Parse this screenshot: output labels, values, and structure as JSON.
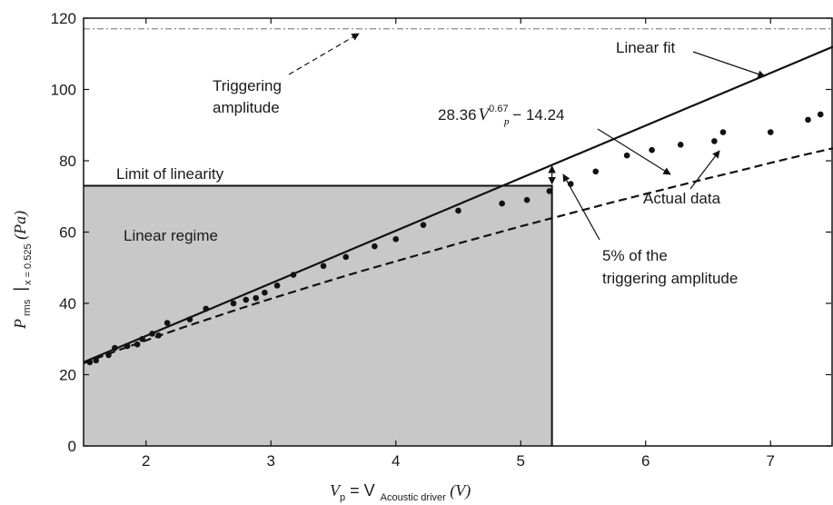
{
  "chart_data": {
    "type": "scatter",
    "xlim": [
      1.5,
      7.5
    ],
    "ylim": [
      0,
      120
    ],
    "x_ticks": [
      2,
      3,
      4,
      5,
      6,
      7
    ],
    "y_ticks": [
      0,
      20,
      40,
      60,
      80,
      100,
      120
    ],
    "grid": false,
    "xlabel": {
      "main": "V",
      "main_sub": "p",
      "equals": " = V",
      "sub": "Acoustic driver",
      "unit": " (V)"
    },
    "ylabel": {
      "main": "P",
      "main_sub": "rms",
      "bar_sub": "x = 0.525",
      "unit": " (Pa)"
    },
    "series": [
      {
        "name": "Actual data",
        "style": "points",
        "x": [
          1.55,
          1.6,
          1.7,
          1.75,
          1.85,
          1.93,
          1.97,
          2.05,
          2.1,
          2.17,
          2.35,
          2.48,
          2.7,
          2.8,
          2.88,
          2.95,
          3.05,
          3.18,
          3.42,
          3.6,
          3.83,
          4.0,
          4.22,
          4.5,
          4.85,
          5.05,
          5.23,
          5.4,
          5.6,
          5.85,
          6.05,
          6.28,
          6.55,
          6.62,
          7.0,
          7.3,
          7.4
        ],
        "y": [
          23.5,
          24.0,
          25.5,
          27.5,
          28.0,
          28.5,
          30.0,
          31.5,
          31.0,
          34.5,
          35.5,
          38.5,
          40.0,
          41.0,
          41.5,
          43.0,
          45.0,
          48.0,
          50.5,
          53.0,
          56.0,
          58.0,
          62.0,
          66.0,
          68.0,
          69.0,
          71.5,
          73.5,
          77.0,
          81.5,
          83.0,
          84.5,
          85.5,
          88.0,
          88.0,
          91.5,
          93.0
        ]
      },
      {
        "name": "Linear fit",
        "style": "solid",
        "x": [
          1.5,
          7.5
        ],
        "y": [
          23.5,
          112.0
        ]
      },
      {
        "name": "28.36V_p^0.67 − 14.24",
        "style": "dashed",
        "x": [
          1.5,
          1.75,
          2.0,
          2.25,
          2.5,
          2.75,
          3.0,
          3.25,
          3.5,
          3.75,
          4.0,
          4.25,
          4.5,
          4.75,
          5.0,
          5.25,
          5.5,
          5.75,
          6.0,
          6.25,
          6.5,
          6.75,
          7.0,
          7.25,
          7.5
        ],
        "y": [
          23.2,
          26.5,
          29.6,
          32.7,
          35.6,
          38.5,
          41.3,
          44.0,
          46.7,
          49.3,
          51.8,
          54.3,
          56.8,
          59.2,
          61.6,
          63.9,
          66.2,
          68.5,
          70.7,
          72.9,
          75.1,
          77.2,
          79.4,
          81.5,
          83.5
        ]
      }
    ],
    "reference_lines": {
      "triggering_amplitude": 117,
      "limit_of_linearity_y": 73,
      "limit_of_linearity_x": 5.25
    },
    "annotations": {
      "triggering_line1": "Triggering",
      "triggering_line2": "amplitude",
      "limit_of_linearity": "Limit of linearity",
      "linear_regime": "Linear regime",
      "linear_fit": "Linear fit",
      "formula_coef": "28.36",
      "formula_var": "V",
      "formula_sub": "p",
      "formula_exp": "0.67",
      "formula_tail": " − 14.24",
      "actual_data": "Actual data",
      "five_percent_line1": "5% of the",
      "five_percent_line2": "triggering amplitude"
    },
    "colors": {
      "linear_regime_fill": "#c8c8c8",
      "line": "#111111",
      "trigger_line": "#8a8a8a"
    }
  }
}
